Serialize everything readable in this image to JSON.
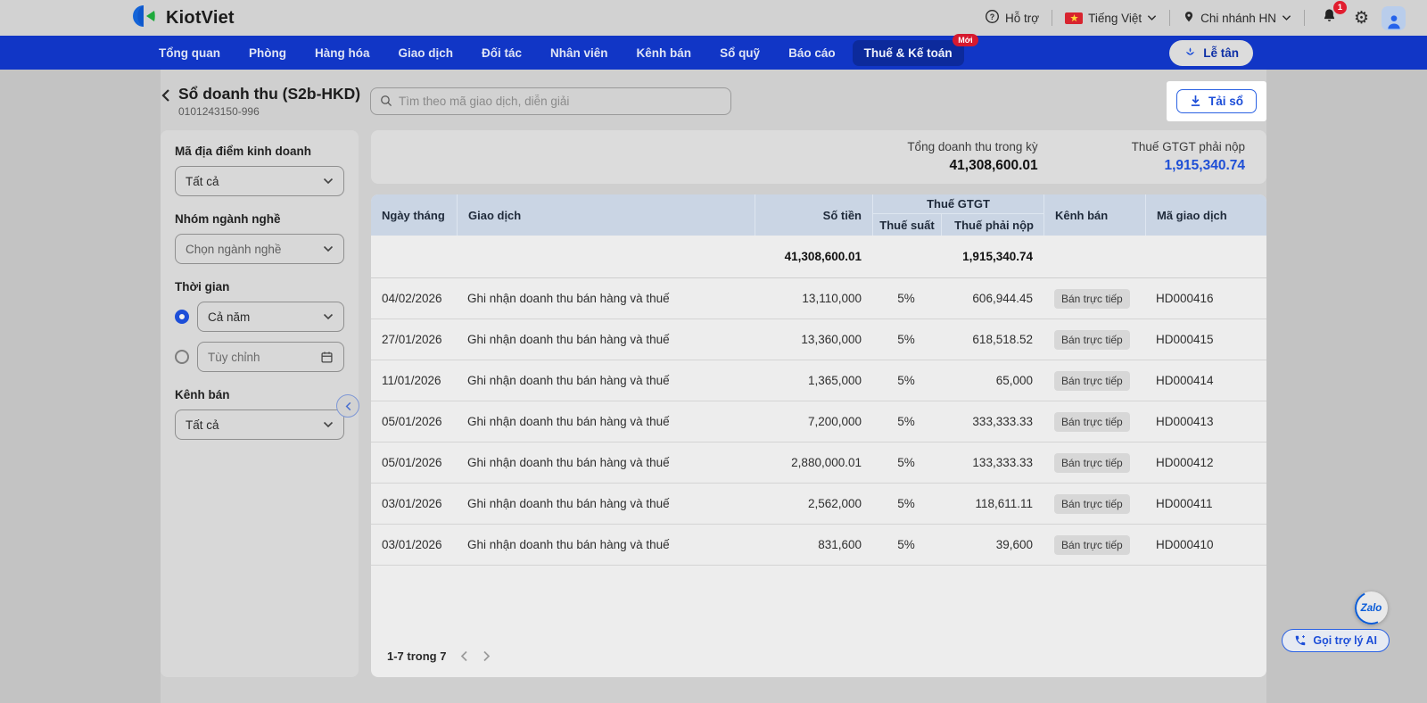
{
  "colors": {
    "nav_blue": "#1136c6",
    "nav_active_blue": "#0c2a9c",
    "accent_blue": "#1d4ed8",
    "badge_red": "#e11d2f",
    "table_header_bg": "#cad5e4"
  },
  "topbar": {
    "brand": "KiotViet",
    "support_label": "Hỗ trợ",
    "language_label": "Tiếng Việt",
    "branch_label": "Chi nhánh HN",
    "notification_count": "1"
  },
  "nav": {
    "items": [
      {
        "label": "Tổng quan"
      },
      {
        "label": "Phòng"
      },
      {
        "label": "Hàng hóa"
      },
      {
        "label": "Giao dịch"
      },
      {
        "label": "Đối tác"
      },
      {
        "label": "Nhân viên"
      },
      {
        "label": "Kênh bán"
      },
      {
        "label": "Sổ quỹ"
      },
      {
        "label": "Báo cáo"
      },
      {
        "label": "Thuế & Kế toán",
        "active": true,
        "badge": "Mới"
      }
    ],
    "reception_label": "Lễ tân"
  },
  "page": {
    "title": "Sổ doanh thu (S2b-HKD)",
    "subtitle": "0101243150-996",
    "search_placeholder": "Tìm theo mã giao dịch, diễn giải",
    "download_label": "Tải sổ"
  },
  "filters": {
    "location_label": "Mã địa điểm kinh doanh",
    "location_value": "Tất cả",
    "industry_label": "Nhóm ngành nghề",
    "industry_value": "Chọn ngành nghề",
    "time_label": "Thời gian",
    "time_year_value": "Cả năm",
    "time_custom_placeholder": "Tùy chỉnh",
    "time_selected": "year",
    "channel_label": "Kênh bán",
    "channel_value": "Tất cả"
  },
  "summary": {
    "revenue_label": "Tổng doanh thu trong kỳ",
    "revenue_value": "41,308,600.01",
    "tax_label": "Thuế GTGT phải nộp",
    "tax_value": "1,915,340.74"
  },
  "table": {
    "col_date": "Ngày tháng",
    "col_transaction": "Giao dịch",
    "col_amount": "Số tiền",
    "col_vat_group": "Thuế GTGT",
    "col_tax_rate": "Thuế suất",
    "col_tax_due": "Thuế phải nộp",
    "col_channel": "Kênh bán",
    "col_code": "Mã giao dịch",
    "totals": {
      "amount": "41,308,600.01",
      "tax": "1,915,340.74"
    },
    "rows": [
      {
        "date": "04/02/2026",
        "description": "Ghi nhận doanh thu bán hàng và thuế",
        "amount": "13,110,000",
        "tax_rate": "5%",
        "tax_due": "606,944.45",
        "channel": "Bán trực tiếp",
        "code": "HD000416"
      },
      {
        "date": "27/01/2026",
        "description": "Ghi nhận doanh thu bán hàng và thuế",
        "amount": "13,360,000",
        "tax_rate": "5%",
        "tax_due": "618,518.52",
        "channel": "Bán trực tiếp",
        "code": "HD000415"
      },
      {
        "date": "11/01/2026",
        "description": "Ghi nhận doanh thu bán hàng và thuế",
        "amount": "1,365,000",
        "tax_rate": "5%",
        "tax_due": "65,000",
        "channel": "Bán trực tiếp",
        "code": "HD000414"
      },
      {
        "date": "05/01/2026",
        "description": "Ghi nhận doanh thu bán hàng và thuế",
        "amount": "7,200,000",
        "tax_rate": "5%",
        "tax_due": "333,333.33",
        "channel": "Bán trực tiếp",
        "code": "HD000413"
      },
      {
        "date": "05/01/2026",
        "description": "Ghi nhận doanh thu bán hàng và thuế",
        "amount": "2,880,000.01",
        "tax_rate": "5%",
        "tax_due": "133,333.33",
        "channel": "Bán trực tiếp",
        "code": "HD000412"
      },
      {
        "date": "03/01/2026",
        "description": "Ghi nhận doanh thu bán hàng và thuế",
        "amount": "2,562,000",
        "tax_rate": "5%",
        "tax_due": "118,611.11",
        "channel": "Bán trực tiếp",
        "code": "HD000411"
      },
      {
        "date": "03/01/2026",
        "description": "Ghi nhận doanh thu bán hàng và thuế",
        "amount": "831,600",
        "tax_rate": "5%",
        "tax_due": "39,600",
        "channel": "Bán trực tiếp",
        "code": "HD000410"
      }
    ],
    "pagination_range": "1-7 trong 7"
  },
  "floating": {
    "zalo_label": "Zalo",
    "ai_call_label": "Gọi trợ lý AI"
  }
}
